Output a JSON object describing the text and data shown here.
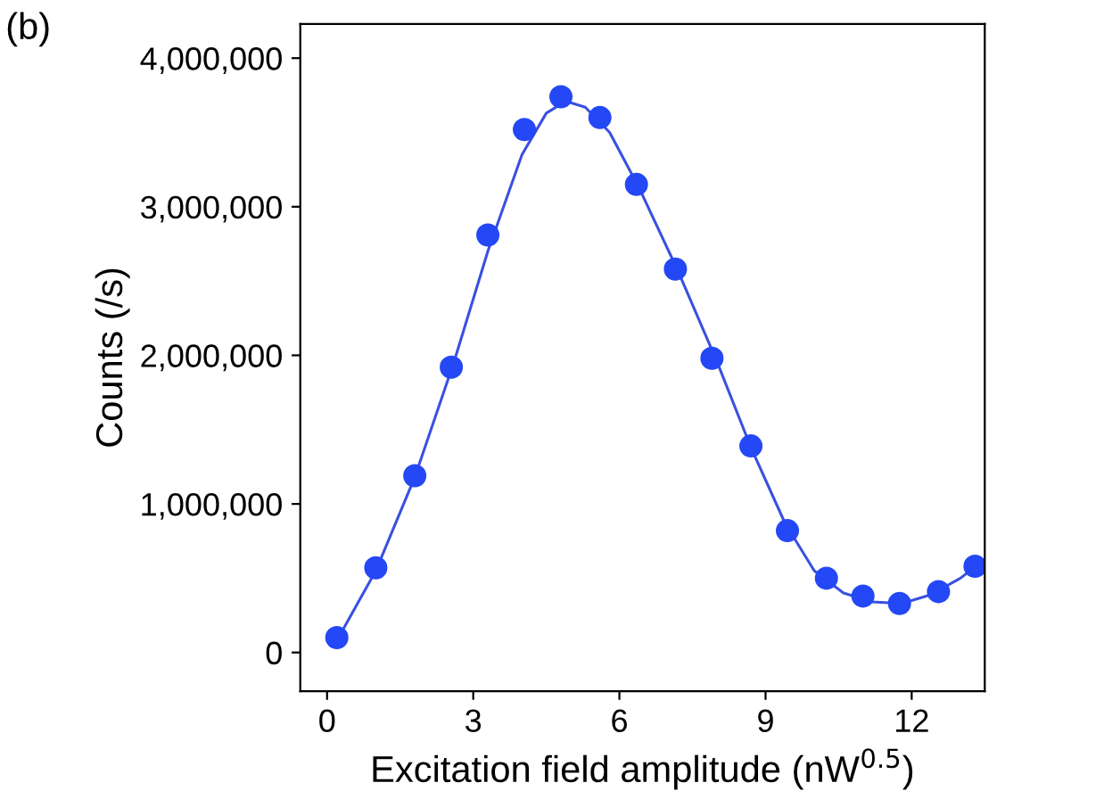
{
  "chart_data": {
    "type": "scatter",
    "xlabel": "Excitation field amplitude (nW$^{0.5}$)",
    "ylabel": "Counts (/s)",
    "annotations": [
      "(b)"
    ],
    "series": [
      {
        "color": "#2448f5",
        "marker": "circle",
        "x": [
          0.2,
          1.0,
          1.8,
          2.55,
          3.3,
          4.05,
          4.8,
          5.6,
          6.35,
          7.15,
          7.9,
          8.7,
          9.45,
          10.25,
          11.0,
          11.75,
          12.55,
          13.3
        ],
        "values": [
          100000,
          570000,
          1190000,
          1920000,
          2810000,
          3520000,
          3740000,
          3600000,
          3150000,
          2580000,
          1980000,
          1390000,
          820000,
          500000,
          380000,
          330000,
          410000,
          580000
        ]
      },
      {
        "type": "line",
        "color": "#3a50e0",
        "marker": "none",
        "line_style": "solid",
        "x": [
          0.2,
          1.0,
          1.8,
          2.6,
          3.3,
          4.0,
          4.5,
          4.9,
          5.3,
          5.8,
          6.4,
          7.2,
          8.0,
          8.7,
          9.4,
          10.0,
          10.6,
          11.2,
          11.8,
          12.4,
          13.0,
          13.4
        ],
        "values": [
          80000,
          550000,
          1180000,
          1950000,
          2700000,
          3350000,
          3630000,
          3710000,
          3670000,
          3500000,
          3130000,
          2570000,
          1960000,
          1380000,
          870000,
          550000,
          400000,
          340000,
          330000,
          390000,
          500000,
          600000
        ]
      }
    ],
    "xlim": [
      -0.55,
      13.5
    ],
    "xticks": [
      0,
      3,
      6,
      9,
      12
    ],
    "ylim": [
      -260000,
      4230000
    ],
    "yticks": [
      0,
      {
        "value": 1000000,
        "label": "1,000,000"
      },
      {
        "value": 2000000,
        "label": "2,000,000"
      },
      {
        "value": 3000000,
        "label": "3,000,000"
      },
      {
        "value": 4000000,
        "label": "4,000,000"
      }
    ],
    "grid": false,
    "legend": false
  }
}
